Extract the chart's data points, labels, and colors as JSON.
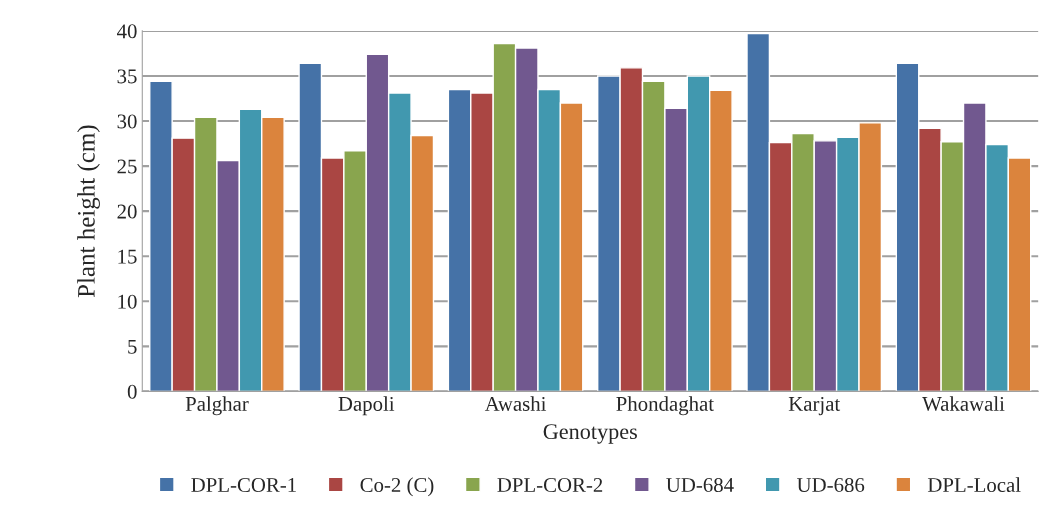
{
  "chart_data": {
    "type": "bar",
    "xlabel": "Genotypes",
    "ylabel": "Plant height (cm)",
    "categories": [
      "Palghar",
      "Dapoli",
      "Awashi",
      "Phondaghat",
      "Karjat",
      "Wakawali"
    ],
    "series": [
      {
        "name": "DPL-COR-1",
        "color": "#4572a7",
        "values": [
          34.4,
          36.4,
          33.5,
          35.0,
          39.7,
          36.4
        ]
      },
      {
        "name": "Co-2 (C)",
        "color": "#aa4643",
        "values": [
          28.1,
          25.9,
          33.1,
          35.9,
          27.6,
          29.2
        ]
      },
      {
        "name": "DPL-COR-2",
        "color": "#89a54e",
        "values": [
          30.4,
          26.7,
          38.6,
          34.4,
          28.6,
          27.7
        ]
      },
      {
        "name": "UD-684",
        "color": "#71588f",
        "values": [
          25.6,
          37.4,
          38.1,
          31.4,
          27.8,
          32.0
        ]
      },
      {
        "name": "UD-686",
        "color": "#4198af",
        "values": [
          31.3,
          33.1,
          33.5,
          35.0,
          28.2,
          27.4
        ]
      },
      {
        "name": "DPL-Local",
        "color": "#db843d",
        "values": [
          30.4,
          28.4,
          32.0,
          33.4,
          29.8,
          25.9
        ]
      }
    ],
    "ylim": [
      0,
      40
    ],
    "yticks": [
      0,
      5,
      10,
      15,
      20,
      25,
      30,
      35,
      40
    ],
    "grid": "y",
    "legend": "bottom"
  }
}
